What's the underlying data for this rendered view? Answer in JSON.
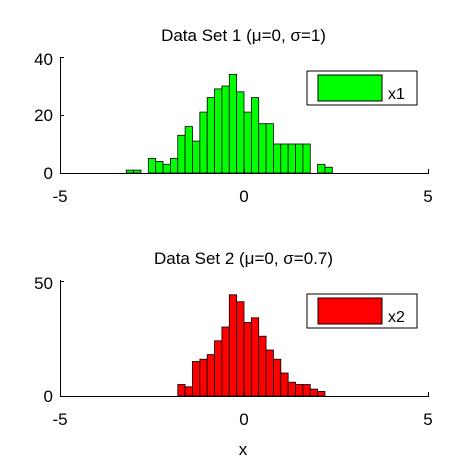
{
  "chart_data": [
    {
      "type": "bar",
      "title": "Data Set 1 (μ=0, σ=1)",
      "xlim": [
        -5,
        5
      ],
      "ylim": [
        0,
        40
      ],
      "xticks": [
        "-5",
        "0",
        "5"
      ],
      "yticks": [
        "0",
        "20",
        "40"
      ],
      "xlabel": "",
      "ylabel": "",
      "legend_position": "top-right",
      "series": [
        {
          "name": "x1",
          "color": "#00ff00",
          "bin_width": 0.2,
          "bin_starts": [
            -3.2,
            -3.0,
            -2.6,
            -2.4,
            -2.2,
            -2.0,
            -1.8,
            -1.6,
            -1.4,
            -1.2,
            -1.0,
            -0.8,
            -0.6,
            -0.4,
            -0.2,
            0.0,
            0.2,
            0.4,
            0.6,
            0.8,
            1.0,
            1.2,
            1.4,
            1.6,
            2.0,
            2.2
          ],
          "values": [
            1,
            1,
            5,
            4,
            3,
            5,
            13,
            16,
            11,
            21,
            26,
            29,
            30,
            34,
            28,
            21,
            26,
            17,
            17,
            10,
            10,
            10,
            10,
            10,
            3,
            2
          ]
        }
      ]
    },
    {
      "type": "bar",
      "title": "Data Set 2 (μ=0, σ=0.7)",
      "xlim": [
        -5,
        5
      ],
      "ylim": [
        0,
        50
      ],
      "xticks": [
        "-5",
        "0",
        "5"
      ],
      "yticks": [
        "0",
        "50"
      ],
      "xlabel": "x",
      "ylabel": "",
      "legend_position": "top-right",
      "series": [
        {
          "name": "x2",
          "color": "#ff0000",
          "bin_width": 0.2,
          "bin_starts": [
            -1.8,
            -1.6,
            -1.4,
            -1.2,
            -1.0,
            -0.8,
            -0.6,
            -0.4,
            -0.2,
            0.0,
            0.2,
            0.4,
            0.6,
            0.8,
            1.0,
            1.2,
            1.4,
            1.6,
            1.8,
            2.0
          ],
          "values": [
            5,
            4,
            15,
            16,
            18,
            24,
            30,
            44,
            41,
            32,
            34,
            26,
            20,
            16,
            10,
            6,
            5,
            5,
            3,
            2
          ]
        }
      ]
    }
  ]
}
